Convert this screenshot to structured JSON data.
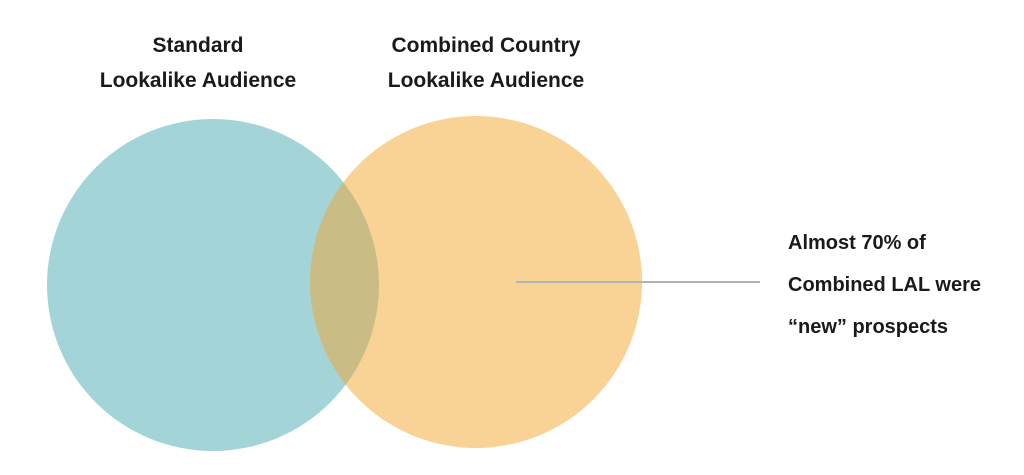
{
  "venn": {
    "left_set": {
      "label_line1": "Standard",
      "label_line2": "Lookalike Audience",
      "color": "#a3d4d8"
    },
    "right_set": {
      "label_line1": "Combined Country",
      "label_line2": "Lookalike Audience",
      "color": "#f9d296"
    },
    "overlap_color": "#c9bc85",
    "callout": {
      "line1": "Almost 70% of",
      "line2": "Combined LAL were",
      "line3": "“new” prospects",
      "leader_color": "#b3b3b3"
    }
  }
}
